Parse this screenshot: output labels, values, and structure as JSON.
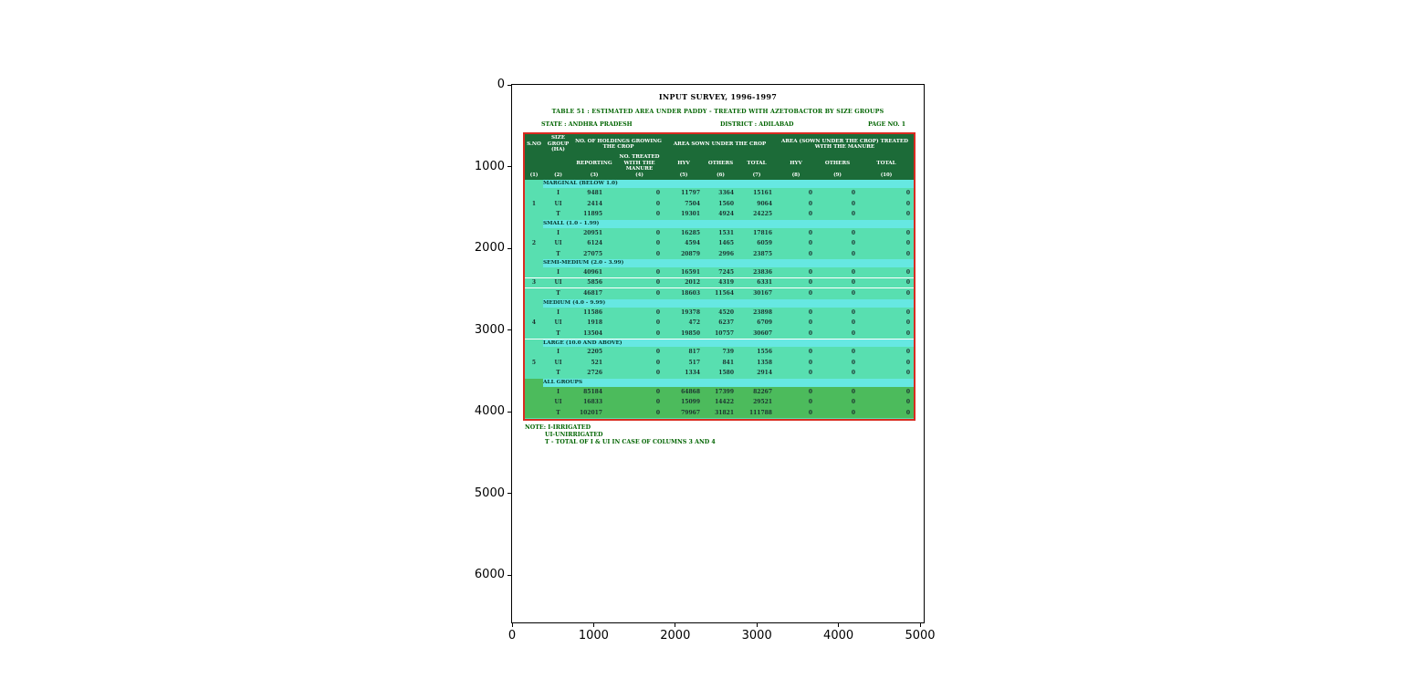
{
  "figure": {
    "x_ticks": [
      "0",
      "1000",
      "2000",
      "3000",
      "4000",
      "5000"
    ],
    "y_ticks": [
      "0",
      "1000",
      "2000",
      "3000",
      "4000",
      "5000",
      "6000"
    ]
  },
  "document": {
    "title": "INPUT SURVEY, 1996-1997",
    "subtitle": "TABLE 51 : ESTIMATED AREA UNDER PADDY - TREATED WITH AZETOBACTOR BY SIZE GROUPS",
    "state": "STATE : ANDHRA PRADESH",
    "district": "DISTRICT : ADILABAD",
    "page": "PAGE NO. 1",
    "note_line1": "NOTE: I-IRRIGATED",
    "note_line2": "UI-UNIRRIGATED",
    "note_line3": "T - TOTAL OF I & UI IN CASE OF COLUMNS 3 AND 4"
  },
  "chart_data": {
    "type": "table",
    "title": "INPUT SURVEY, 1996-1997",
    "subtitle": "TABLE 51 : ESTIMATED AREA UNDER PADDY - TREATED WITH AZETOBACTOR BY SIZE GROUPS",
    "header": {
      "col1": "S.NO",
      "col2": "SIZE GROUP (HA)",
      "group_holdings": "NO. OF HOLDINGS GROWING THE CROP",
      "sub_reporting": "REPORTING",
      "sub_treated": "NO. TREATED WITH THE MANURE",
      "group_area_sown": "AREA SOWN UNDER THE CROP",
      "group_area_treated": "AREA (SOWN UNDER THE CROP) TREATED WITH THE MANURE",
      "sub_hyv": "HYV",
      "sub_others": "OTHERS",
      "sub_total": "TOTAL",
      "col_numbers": [
        "(1)",
        "(2)",
        "(3)",
        "(4)",
        "(5)",
        "(6)",
        "(7)",
        "(8)",
        "(9)",
        "(10)"
      ]
    },
    "groups": [
      {
        "sl": "1",
        "label": "MARGINAL (BELOW 1.0)",
        "green": false,
        "rows": [
          {
            "t": "I",
            "v": [
              "9481",
              "0",
              "11797",
              "3364",
              "15161",
              "0",
              "0",
              "0"
            ]
          },
          {
            "t": "UI",
            "v": [
              "2414",
              "0",
              "7504",
              "1560",
              "9064",
              "0",
              "0",
              "0"
            ]
          },
          {
            "t": "T",
            "v": [
              "11895",
              "0",
              "19301",
              "4924",
              "24225",
              "0",
              "0",
              "0"
            ]
          }
        ]
      },
      {
        "sl": "2",
        "label": "SMALL (1.0 - 1.99)",
        "green": false,
        "rows": [
          {
            "t": "I",
            "v": [
              "20951",
              "0",
              "16285",
              "1531",
              "17816",
              "0",
              "0",
              "0"
            ]
          },
          {
            "t": "UI",
            "v": [
              "6124",
              "0",
              "4594",
              "1465",
              "6059",
              "0",
              "0",
              "0"
            ]
          },
          {
            "t": "T",
            "v": [
              "27075",
              "0",
              "20879",
              "2996",
              "23875",
              "0",
              "0",
              "0"
            ]
          }
        ]
      },
      {
        "sl": "3",
        "label": "SEMI-MEDIUM (2.0 - 3.99)",
        "green": false,
        "rows": [
          {
            "t": "I",
            "v": [
              "40961",
              "0",
              "16591",
              "7245",
              "23836",
              "0",
              "0",
              "0"
            ]
          },
          {
            "t": "UI",
            "v": [
              "5856",
              "0",
              "2012",
              "4319",
              "6331",
              "0",
              "0",
              "0"
            ]
          },
          {
            "t": "T",
            "v": [
              "46817",
              "0",
              "18603",
              "11564",
              "30167",
              "0",
              "0",
              "0"
            ]
          }
        ]
      },
      {
        "sl": "4",
        "label": "MEDIUM (4.0 - 9.99)",
        "green": false,
        "rows": [
          {
            "t": "I",
            "v": [
              "11586",
              "0",
              "19378",
              "4520",
              "23898",
              "0",
              "0",
              "0"
            ]
          },
          {
            "t": "UI",
            "v": [
              "1918",
              "0",
              "472",
              "6237",
              "6709",
              "0",
              "0",
              "0"
            ]
          },
          {
            "t": "T",
            "v": [
              "13504",
              "0",
              "19850",
              "10757",
              "30607",
              "0",
              "0",
              "0"
            ]
          }
        ]
      },
      {
        "sl": "5",
        "label": "LARGE (10.0 AND ABOVE)",
        "green": false,
        "rows": [
          {
            "t": "I",
            "v": [
              "2205",
              "0",
              "817",
              "739",
              "1556",
              "0",
              "0",
              "0"
            ]
          },
          {
            "t": "UI",
            "v": [
              "521",
              "0",
              "517",
              "841",
              "1358",
              "0",
              "0",
              "0"
            ]
          },
          {
            "t": "T",
            "v": [
              "2726",
              "0",
              "1334",
              "1580",
              "2914",
              "0",
              "0",
              "0"
            ]
          }
        ]
      },
      {
        "sl": "",
        "label": "ALL GROUPS",
        "green": true,
        "rows": [
          {
            "t": "I",
            "v": [
              "85184",
              "0",
              "64868",
              "17399",
              "82267",
              "0",
              "0",
              "0"
            ]
          },
          {
            "t": "UI",
            "v": [
              "16833",
              "0",
              "15099",
              "14422",
              "29521",
              "0",
              "0",
              "0"
            ]
          },
          {
            "t": "T",
            "v": [
              "102017",
              "0",
              "79967",
              "31821",
              "111788",
              "0",
              "0",
              "0"
            ]
          }
        ]
      }
    ],
    "notes": [
      "NOTE: I-IRRIGATED",
      "UI-UNIRRIGATED",
      "T - TOTAL OF I & UI IN CASE OF COLUMNS 3 AND 4"
    ],
    "x_axis_range": [
      0,
      5000
    ],
    "y_axis_range": [
      0,
      6600
    ],
    "legend": "none",
    "grid": "off"
  },
  "colors": {
    "header_green": "#1c6b38",
    "band_cyan": "#66e8e2",
    "body_teal": "#58dfb0",
    "all_green": "#4cbb5c",
    "border_red": "#d92b21",
    "doc_green": "#006400"
  }
}
